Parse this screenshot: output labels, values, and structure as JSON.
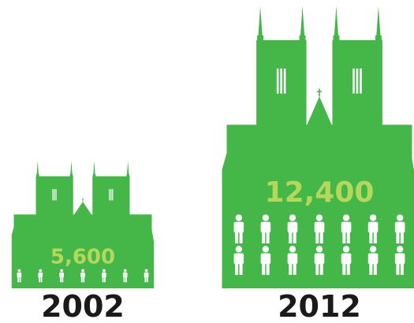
{
  "chart_data": {
    "type": "bar",
    "categories": [
      "2002",
      "2012"
    ],
    "values": [
      5600,
      12400
    ],
    "value_labels": [
      "5,600",
      "12,400"
    ],
    "title": "",
    "xlabel": "",
    "ylabel": "",
    "ylim": [
      0,
      12400
    ],
    "colors": {
      "building": "#45b749",
      "value_text": "#b3d85c",
      "people": "#ffffff",
      "year_text": "#1a1a1a"
    },
    "icons": [
      "cathedral-icon",
      "person-icon"
    ]
  }
}
